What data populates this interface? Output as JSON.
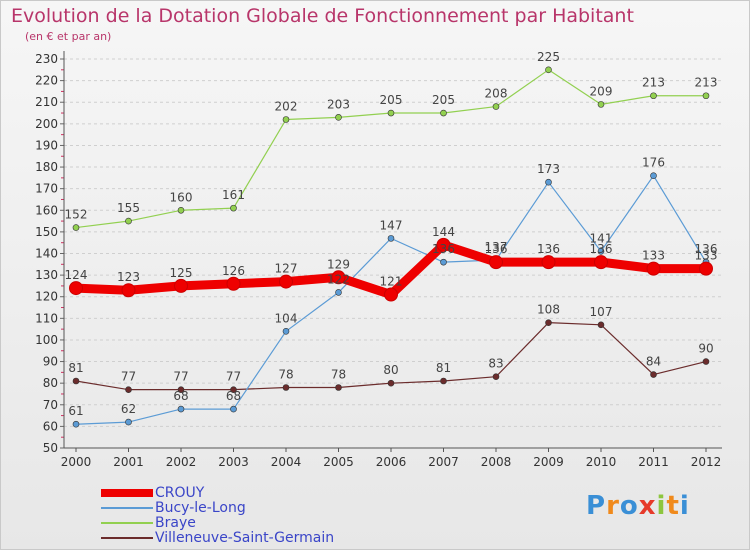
{
  "title": "Evolution de la Dotation Globale de Fonctionnement par Habitant",
  "subtitle": "(en € et par an)",
  "logo": {
    "letters": [
      "P",
      "r",
      "o",
      "x",
      "i",
      "t",
      "i"
    ],
    "colors": [
      "#3a8fd6",
      "#f08a1c",
      "#3a8fd6",
      "#e63a2a",
      "#8dc63f",
      "#f08a1c",
      "#3a8fd6"
    ]
  },
  "chart_data": {
    "type": "line",
    "x": [
      "2000",
      "2001",
      "2002",
      "2003",
      "2004",
      "2005",
      "2006",
      "2007",
      "2008",
      "2009",
      "2010",
      "2011",
      "2012"
    ],
    "ylim": [
      50,
      230
    ],
    "yticks": [
      50,
      60,
      70,
      80,
      90,
      100,
      110,
      120,
      130,
      140,
      150,
      160,
      170,
      180,
      190,
      200,
      210,
      220,
      230
    ],
    "grid": "horizontal-dashed",
    "legend_position": "bottom-left",
    "series": [
      {
        "name": "CROUY",
        "color": "#ee0000",
        "values": [
          124,
          123,
          125,
          126,
          127,
          129,
          121,
          144,
          136,
          136,
          136,
          133,
          133
        ]
      },
      {
        "name": "Bucy-le-Long",
        "color": "#5b9bd5",
        "values": [
          61,
          62,
          68,
          68,
          104,
          122,
          147,
          136,
          137,
          173,
          141,
          176,
          136
        ]
      },
      {
        "name": "Braye",
        "color": "#92d050",
        "values": [
          152,
          155,
          160,
          161,
          202,
          203,
          205,
          205,
          208,
          225,
          209,
          213,
          213
        ]
      },
      {
        "name": "Villeneuve-Saint-Germain",
        "color": "#6b2c2c",
        "values": [
          81,
          77,
          77,
          77,
          78,
          78,
          80,
          81,
          83,
          108,
          107,
          84,
          90
        ]
      }
    ]
  }
}
